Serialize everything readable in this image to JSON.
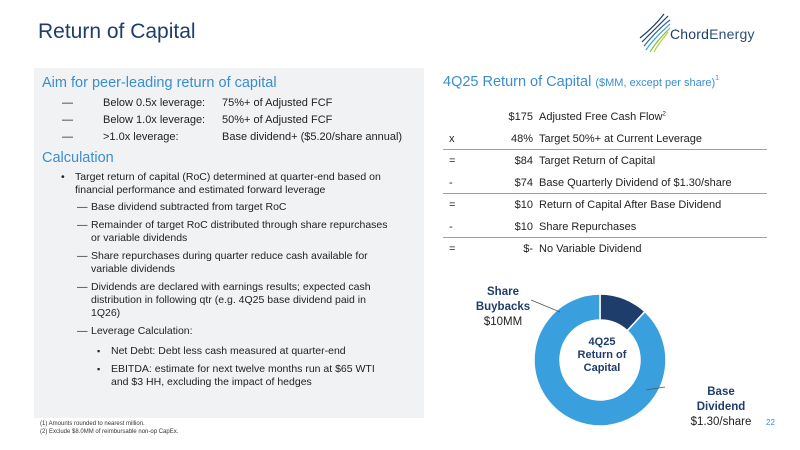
{
  "page": {
    "title": "Return of Capital",
    "page_number": "22"
  },
  "logo": {
    "brand": "Chord",
    "brand_suffix": "Energy"
  },
  "aim": {
    "heading": "Aim for peer-leading return of capital",
    "rows": [
      {
        "dash": "—",
        "label": "Below 0.5x leverage:",
        "value": "75%+ of Adjusted FCF"
      },
      {
        "dash": "—",
        "label": "Below 1.0x leverage:",
        "value": "50%+ of Adjusted FCF"
      },
      {
        "dash": "—",
        "label": ">1.0x leverage:",
        "value": "Base dividend+ ($5.20/share annual)"
      }
    ]
  },
  "calculation": {
    "heading": "Calculation",
    "bullet_mark": "•",
    "main_bullet_line1": "Target return of capital (RoC) determined at quarter-end based on",
    "main_bullet_line2": "financial performance and estimated forward leverage",
    "sub_mark": "—",
    "subs": [
      {
        "line1": "Base dividend subtracted from target RoC",
        "line2": "",
        "line3": ""
      },
      {
        "line1": "Remainder of target RoC distributed through share repurchases",
        "line2": "or variable dividends",
        "line3": ""
      },
      {
        "line1": "Share repurchases during quarter reduce cash available for",
        "line2": "variable dividends",
        "line3": ""
      },
      {
        "line1": "Dividends are declared with earnings results; expected cash",
        "line2": "distribution in following qtr (e.g. 4Q25 base dividend paid in",
        "line3": "1Q26)"
      },
      {
        "line1": "Leverage Calculation:",
        "line2": "",
        "line3": ""
      }
    ],
    "sq_mark": "▪",
    "leverage_items": [
      {
        "line1": "Net Debt: Debt less cash measured at quarter-end",
        "line2": ""
      },
      {
        "line1": "EBITDA: estimate for next twelve months run at $65 WTI",
        "line2": "and $3 HH, excluding the impact of hedges"
      }
    ]
  },
  "footnotes": [
    "(1) Amounts rounded to nearest million.",
    "(2) Exclude $8.0MM of reimbursable non-op CapEx."
  ],
  "roc_table": {
    "title": "4Q25 Return of Capital",
    "subtitle": "($MM, except per share)",
    "title_sup": "1",
    "rows": [
      {
        "op": "",
        "amount": "$175",
        "desc": "Adjusted Free Cash Flow",
        "sup": "2"
      },
      {
        "op": "x",
        "amount": "48%",
        "desc": "Target 50%+ at Current Leverage",
        "sup": ""
      },
      {
        "op": "=",
        "amount": "$84",
        "desc": "Target Return of Capital",
        "sup": ""
      },
      {
        "op": "-",
        "amount": "$74",
        "desc": "Base Quarterly Dividend of $1.30/share",
        "sup": ""
      },
      {
        "op": "=",
        "amount": "$10",
        "desc": "Return of Capital After Base Dividend",
        "sup": ""
      },
      {
        "op": "-",
        "amount": "$10",
        "desc": "Share Repurchases",
        "sup": ""
      },
      {
        "op": "=",
        "amount": "$-",
        "desc": "No Variable Dividend",
        "sup": ""
      }
    ]
  },
  "chart_data": {
    "type": "pie",
    "donut": true,
    "center_label": [
      "4Q25",
      "Return of",
      "Capital"
    ],
    "series": [
      {
        "name": "Share Buybacks",
        "value": 10,
        "value_label": "$10MM",
        "color": "#1f3d6b"
      },
      {
        "name": "Base Dividend",
        "value": 74,
        "value_label": "$1.30/share",
        "color": "#3aa0dd"
      }
    ],
    "labels": {
      "buyback_line1": "Share",
      "buyback_line2": "Buybacks",
      "buyback_value": "$10MM",
      "dividend_line1": "Base",
      "dividend_line2": "Dividend",
      "dividend_value": "$1.30/share"
    }
  },
  "colors": {
    "navy": "#1f3d6b",
    "accent_blue": "#3a8ed0",
    "donut_light": "#3aa0dd",
    "panel_bg": "#f1f2f4"
  }
}
